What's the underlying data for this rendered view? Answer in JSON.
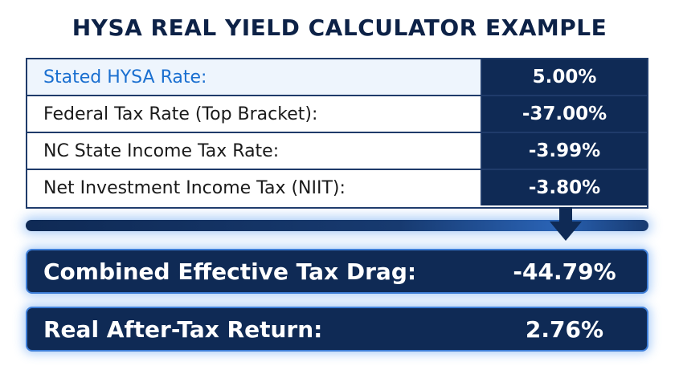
{
  "title": "HYSA REAL YIELD CALCULATOR EXAMPLE",
  "rows": [
    {
      "label": "Stated HYSA Rate:",
      "value": "5.00%"
    },
    {
      "label": "Federal  Tax Rate (Top Bracket):",
      "value": "-37.00%"
    },
    {
      "label": "NC State Income Tax Rate:",
      "value": "-3.99%"
    },
    {
      "label": "Net Investment Income Tax (NIIT):",
      "value": "-3.80%"
    }
  ],
  "results": [
    {
      "label": "Combined Effective Tax Drag:",
      "value": "-44.79%"
    },
    {
      "label": "Real After-Tax Return:",
      "value": "2.76%"
    }
  ],
  "colors": {
    "title": "#0d2247",
    "highlight_text": "#1a6fd0",
    "value_bg": "#0f2a55",
    "glow": "#3f7fd8"
  },
  "icons": {
    "divider_arrow": "down-arrow-icon"
  }
}
